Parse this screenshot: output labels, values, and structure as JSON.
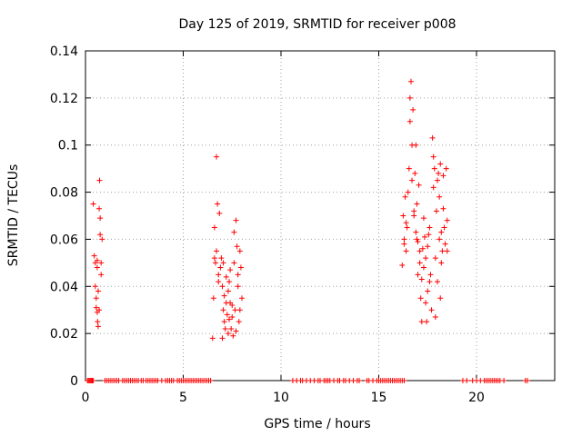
{
  "chart_data": {
    "type": "scatter",
    "title": "Day 125 of 2019, SRMTID for receiver p008",
    "xlabel": "GPS time / hours",
    "ylabel": "SRMTID / TECUs",
    "xlim": [
      0,
      24
    ],
    "ylim": [
      0,
      0.14
    ],
    "xticks": [
      0,
      5,
      10,
      15,
      20
    ],
    "xtick_labels": [
      "0",
      "5",
      "10",
      "15",
      "20"
    ],
    "yticks": [
      0,
      0.02,
      0.04,
      0.06,
      0.08,
      0.1,
      0.12,
      0.14
    ],
    "ytick_labels": [
      "0",
      "0.02",
      "0.04",
      "0.06",
      "0.08",
      "0.1",
      "0.12",
      "0.14"
    ],
    "grid": true,
    "marker": "+",
    "series": [
      {
        "name": "SRMTID",
        "color": "#ff0000",
        "points": [
          [
            0.4,
            0.075
          ],
          [
            0.45,
            0.053
          ],
          [
            0.5,
            0.05
          ],
          [
            0.5,
            0.04
          ],
          [
            0.55,
            0.031
          ],
          [
            0.55,
            0.035
          ],
          [
            0.6,
            0.048
          ],
          [
            0.6,
            0.051
          ],
          [
            0.6,
            0.029
          ],
          [
            0.62,
            0.025
          ],
          [
            0.65,
            0.023
          ],
          [
            0.65,
            0.038
          ],
          [
            0.7,
            0.073
          ],
          [
            0.72,
            0.085
          ],
          [
            0.75,
            0.069
          ],
          [
            0.75,
            0.062
          ],
          [
            0.8,
            0.045
          ],
          [
            0.8,
            0.05
          ],
          [
            0.85,
            0.06
          ],
          [
            0.7,
            0.03
          ],
          [
            6.5,
            0.018
          ],
          [
            6.55,
            0.035
          ],
          [
            6.6,
            0.065
          ],
          [
            6.65,
            0.05
          ],
          [
            6.7,
            0.055
          ],
          [
            6.7,
            0.095
          ],
          [
            6.75,
            0.075
          ],
          [
            6.8,
            0.042
          ],
          [
            6.8,
            0.045
          ],
          [
            6.85,
            0.071
          ],
          [
            6.9,
            0.048
          ],
          [
            6.95,
            0.052
          ],
          [
            7.0,
            0.04
          ],
          [
            7.0,
            0.018
          ],
          [
            7.05,
            0.03
          ],
          [
            7.1,
            0.036
          ],
          [
            7.1,
            0.025
          ],
          [
            7.15,
            0.022
          ],
          [
            7.2,
            0.044
          ],
          [
            7.2,
            0.033
          ],
          [
            7.25,
            0.028
          ],
          [
            7.3,
            0.02
          ],
          [
            7.3,
            0.038
          ],
          [
            7.35,
            0.026
          ],
          [
            7.4,
            0.033
          ],
          [
            7.4,
            0.047
          ],
          [
            7.45,
            0.022
          ],
          [
            7.5,
            0.032
          ],
          [
            7.5,
            0.027
          ],
          [
            7.55,
            0.019
          ],
          [
            7.6,
            0.05
          ],
          [
            7.6,
            0.063
          ],
          [
            7.65,
            0.03
          ],
          [
            7.7,
            0.021
          ],
          [
            7.7,
            0.068
          ],
          [
            7.75,
            0.057
          ],
          [
            7.8,
            0.045
          ],
          [
            7.8,
            0.04
          ],
          [
            7.85,
            0.025
          ],
          [
            7.9,
            0.03
          ],
          [
            7.9,
            0.055
          ],
          [
            7.95,
            0.048
          ],
          [
            8.0,
            0.035
          ],
          [
            6.6,
            0.052
          ],
          [
            7.05,
            0.05
          ],
          [
            7.35,
            0.042
          ],
          [
            16.2,
            0.049
          ],
          [
            16.25,
            0.07
          ],
          [
            16.3,
            0.058
          ],
          [
            16.3,
            0.06
          ],
          [
            16.35,
            0.078
          ],
          [
            16.4,
            0.055
          ],
          [
            16.45,
            0.065
          ],
          [
            16.5,
            0.08
          ],
          [
            16.55,
            0.09
          ],
          [
            16.6,
            0.11
          ],
          [
            16.6,
            0.12
          ],
          [
            16.65,
            0.127
          ],
          [
            16.7,
            0.085
          ],
          [
            16.7,
            0.1
          ],
          [
            16.75,
            0.115
          ],
          [
            16.8,
            0.07
          ],
          [
            16.8,
            0.072
          ],
          [
            16.85,
            0.088
          ],
          [
            16.9,
            0.1
          ],
          [
            16.9,
            0.063
          ],
          [
            16.95,
            0.075
          ],
          [
            17.0,
            0.059
          ],
          [
            17.0,
            0.045
          ],
          [
            17.05,
            0.083
          ],
          [
            17.1,
            0.05
          ],
          [
            17.1,
            0.055
          ],
          [
            17.15,
            0.035
          ],
          [
            17.2,
            0.025
          ],
          [
            17.2,
            0.043
          ],
          [
            17.25,
            0.056
          ],
          [
            17.3,
            0.069
          ],
          [
            17.3,
            0.048
          ],
          [
            17.35,
            0.061
          ],
          [
            17.4,
            0.052
          ],
          [
            17.4,
            0.033
          ],
          [
            17.45,
            0.025
          ],
          [
            17.5,
            0.057
          ],
          [
            17.5,
            0.038
          ],
          [
            17.55,
            0.062
          ],
          [
            17.6,
            0.065
          ],
          [
            17.65,
            0.045
          ],
          [
            17.7,
            0.03
          ],
          [
            17.75,
            0.103
          ],
          [
            17.8,
            0.095
          ],
          [
            17.8,
            0.082
          ],
          [
            17.85,
            0.09
          ],
          [
            17.9,
            0.052
          ],
          [
            17.9,
            0.027
          ],
          [
            17.95,
            0.072
          ],
          [
            18.0,
            0.085
          ],
          [
            18.0,
            0.042
          ],
          [
            18.05,
            0.088
          ],
          [
            18.1,
            0.06
          ],
          [
            18.1,
            0.078
          ],
          [
            18.15,
            0.092
          ],
          [
            18.2,
            0.05
          ],
          [
            18.2,
            0.063
          ],
          [
            18.25,
            0.055
          ],
          [
            18.3,
            0.087
          ],
          [
            18.3,
            0.073
          ],
          [
            18.35,
            0.065
          ],
          [
            18.4,
            0.058
          ],
          [
            18.45,
            0.09
          ],
          [
            18.5,
            0.068
          ],
          [
            18.5,
            0.055
          ],
          [
            16.4,
            0.067
          ],
          [
            16.95,
            0.06
          ],
          [
            17.6,
            0.042
          ],
          [
            18.15,
            0.035
          ]
        ],
        "zero_points": [
          0.1,
          0.15,
          0.2,
          0.25,
          0.3,
          0.35,
          0.4,
          1.0,
          1.1,
          1.2,
          1.3,
          1.4,
          1.5,
          1.6,
          1.7,
          1.9,
          2.0,
          2.1,
          2.2,
          2.3,
          2.4,
          2.5,
          2.6,
          2.7,
          2.85,
          2.95,
          3.1,
          3.2,
          3.3,
          3.4,
          3.5,
          3.6,
          3.7,
          3.9,
          4.1,
          4.2,
          4.3,
          4.4,
          4.5,
          4.7,
          4.8,
          4.9,
          5.0,
          5.1,
          5.2,
          5.3,
          5.4,
          5.5,
          5.6,
          5.7,
          5.8,
          5.9,
          6.0,
          6.1,
          6.2,
          6.3,
          6.4,
          10.6,
          10.8,
          11.0,
          11.1,
          11.3,
          11.5,
          11.7,
          11.9,
          12.0,
          12.2,
          12.3,
          12.4,
          12.5,
          12.7,
          12.9,
          13.0,
          13.2,
          13.3,
          13.5,
          13.7,
          13.9,
          14.0,
          14.4,
          14.5,
          14.7,
          14.9,
          15.0,
          15.1,
          15.2,
          15.3,
          15.4,
          15.5,
          15.6,
          15.7,
          15.8,
          15.9,
          16.0,
          16.1,
          16.2,
          16.3,
          19.3,
          19.5,
          19.8,
          20.0,
          20.2,
          20.4,
          20.5,
          20.6,
          20.7,
          20.8,
          20.9,
          21.0,
          21.1,
          21.2,
          21.4,
          22.5,
          22.6
        ]
      }
    ]
  }
}
